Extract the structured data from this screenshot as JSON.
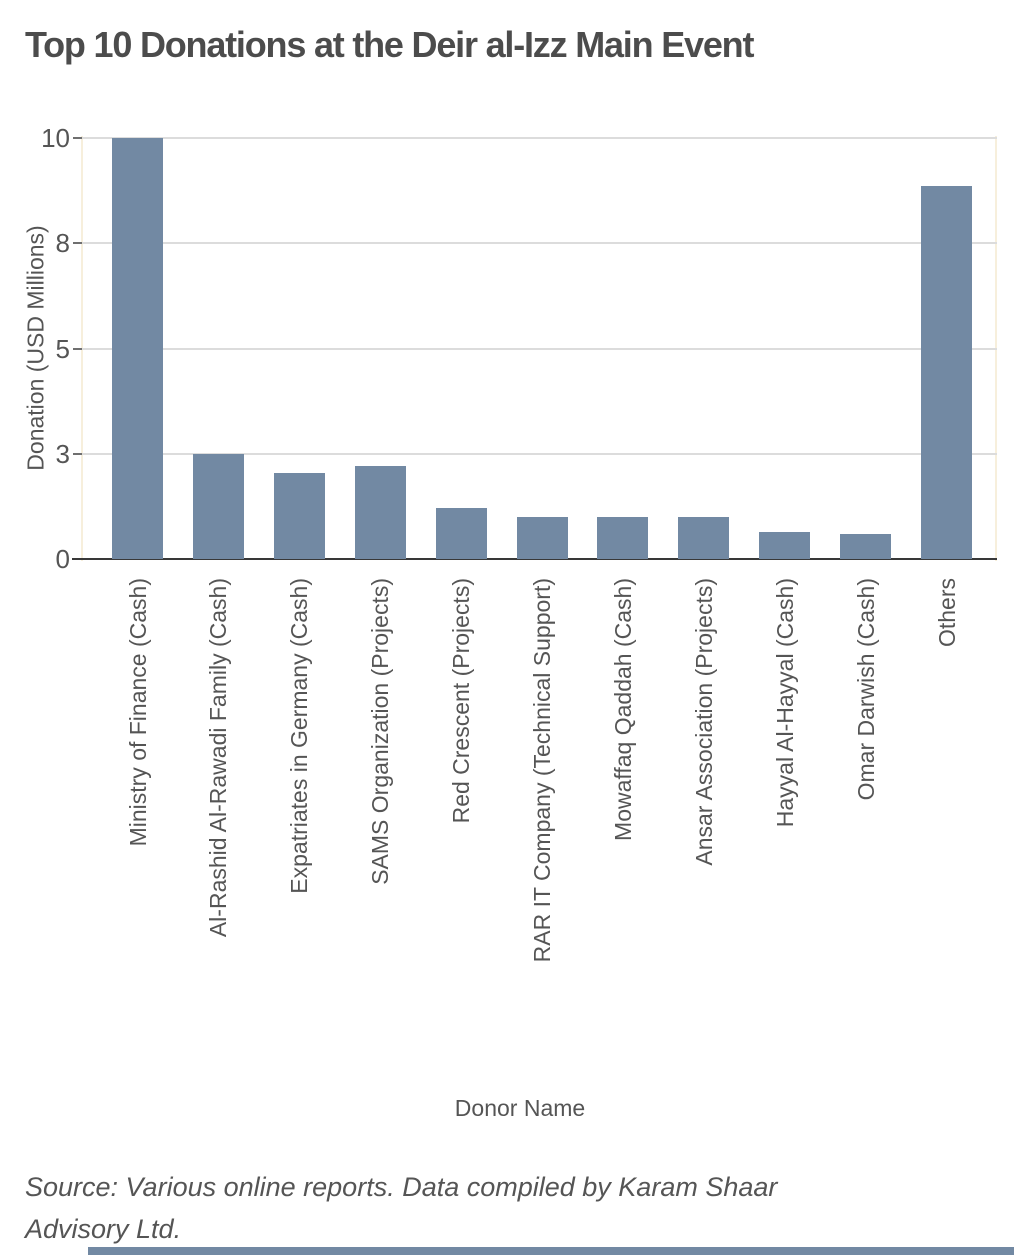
{
  "title": "Top 10 Donations at the Deir al-Izz Main Event",
  "source_lines": [
    "Source: Various online reports. Data compiled by Karam Shaar",
    "Advisory Ltd."
  ],
  "chart_data": {
    "type": "bar",
    "title": "Top 10 Donations at the Deir al-Izz Main Event",
    "xlabel": "Donor Name",
    "ylabel": "Donation (USD Millions)",
    "ylim": [
      0,
      10
    ],
    "yticks": [
      {
        "value": 0,
        "label": "0"
      },
      {
        "value": 2.5,
        "label": "3"
      },
      {
        "value": 5,
        "label": "5"
      },
      {
        "value": 7.5,
        "label": "8"
      },
      {
        "value": 10,
        "label": "10"
      }
    ],
    "grid": "horizontal",
    "legend": "none",
    "source": "Source: Various online reports. Data compiled by Karam Shaar Advisory Ltd.",
    "categories": [
      "Ministry of Finance (Cash)",
      "Al-Rashid Al-Rawadi Family (Cash)",
      "Expatriates in Germany (Cash)",
      "SAMS Organization (Projects)",
      "Red Crescent (Projects)",
      "RAR IT Company (Technical Support)",
      "Mowaffaq Qaddah (Cash)",
      "Ansar Association (Projects)",
      "Hayyal Al-Hayyal (Cash)",
      "Omar Darwish (Cash)",
      "Others"
    ],
    "values": [
      10,
      2.5,
      2.05,
      2.2,
      1.2,
      1,
      1,
      1,
      0.65,
      0.6,
      8.85
    ],
    "bar_color": "#7289a3"
  },
  "colors": {
    "bar": "#7289a3",
    "title_text": "#4c4c4c",
    "axis_text": "#555555",
    "gridline": "#dcdcdc",
    "zero_line": "#383838",
    "edge_guide": "#f7efdc",
    "tick_mark": "#6f6f6f"
  }
}
